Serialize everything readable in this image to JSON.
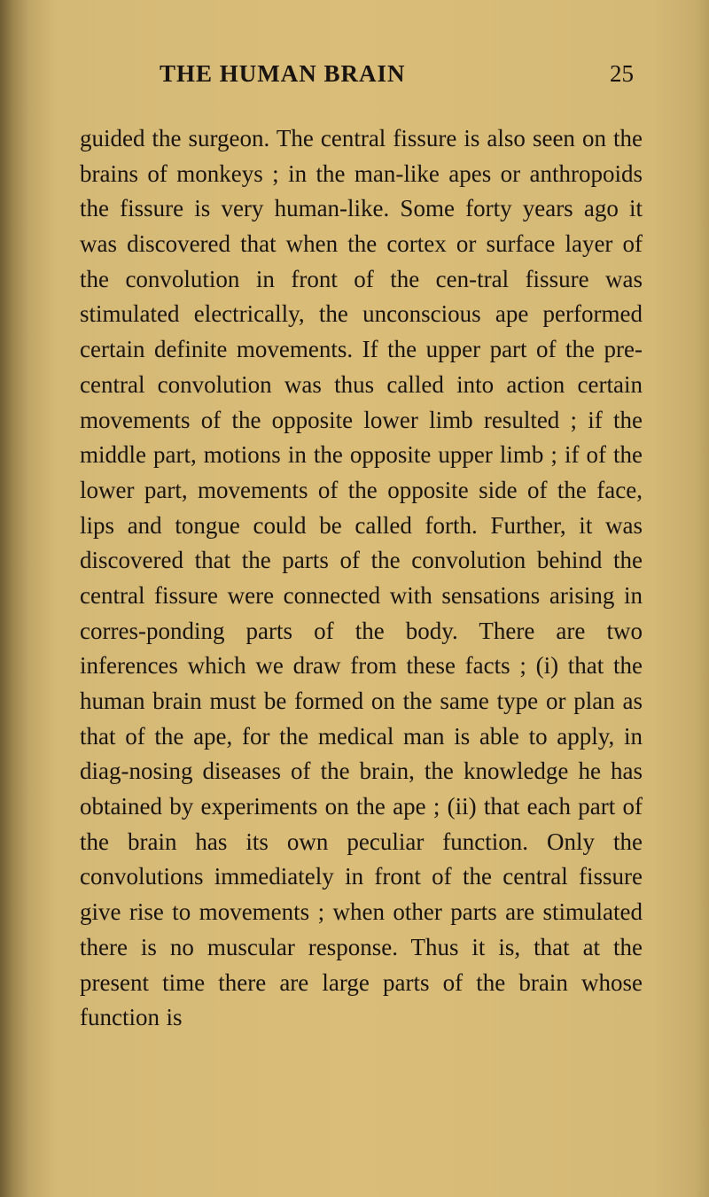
{
  "header": {
    "running_title": "THE HUMAN BRAIN",
    "page_number": "25"
  },
  "body": {
    "text": "guided the surgeon. The central fissure is also seen on the brains of monkeys ; in the man-like apes or anthropoids the fissure is very human-like. Some forty years ago it was discovered that when the cortex or surface layer of the convolution in front of the cen-tral fissure was stimulated electrically, the unconscious ape performed certain definite movements. If the upper part of the pre-central convolution was thus called into action certain movements of the opposite lower limb resulted ; if the middle part, motions in the opposite upper limb ; if of the lower part, movements of the opposite side of the face, lips and tongue could be called forth. Further, it was discovered that the parts of the convolution behind the central fissure were connected with sensations arising in corres-ponding parts of the body. There are two inferences which we draw from these facts ; (i) that the human brain must be formed on the same type or plan as that of the ape, for the medical man is able to apply, in diag-nosing diseases of the brain, the knowledge he has obtained by experiments on the ape ; (ii) that each part of the brain has its own peculiar function. Only the convolutions immediately in front of the central fissure give rise to movements ; when other parts are stimulated there is no muscular response. Thus it is, that at the present time there are large parts of the brain whose function is"
  },
  "colors": {
    "page_background": "#d4b876",
    "text_color": "#1a1410",
    "shadow_dark": "#9a8450"
  },
  "typography": {
    "body_fontsize": 27,
    "header_fontsize": 27,
    "line_height": 1.47,
    "font_family": "Georgia serif"
  }
}
